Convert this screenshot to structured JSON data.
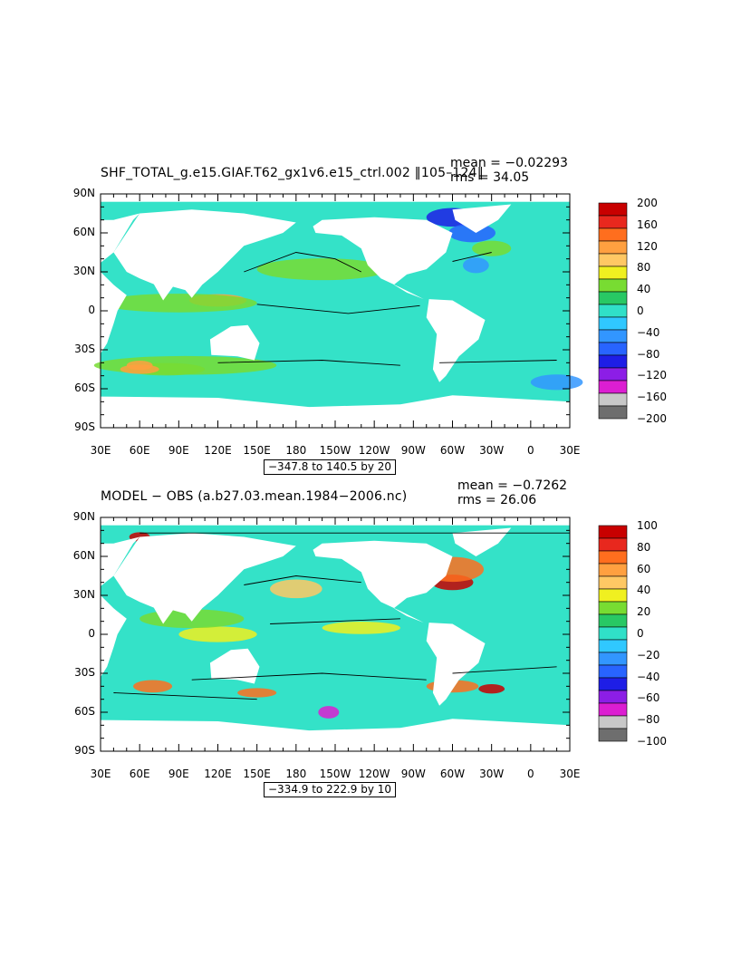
{
  "panels": [
    {
      "title": "SHF_TOTAL_g.e15.GIAF.T62_gx1v6.e15_ctrl.002 ‖105–124‖",
      "mean": "mean = −0.02293",
      "rms": "rms = 34.05",
      "range": "−347.8 to 140.5 by 20",
      "colorbar_labels": [
        "200",
        "160",
        "120",
        "80",
        "40",
        "0",
        "−40",
        "−80",
        "−120",
        "−160",
        "−200"
      ]
    },
    {
      "title": "MODEL − OBS (a.b27.03.mean.1984−2006.nc)",
      "mean": "mean = −0.7262",
      "rms": "rms = 26.06",
      "range": "−334.9 to 222.9 by 10",
      "colorbar_labels": [
        "100",
        "80",
        "60",
        "40",
        "20",
        "0",
        "−20",
        "−40",
        "−60",
        "−80",
        "−100"
      ]
    }
  ],
  "axes": {
    "lat_labels": [
      "90N",
      "60N",
      "30N",
      "0",
      "30S",
      "60S",
      "90S"
    ],
    "lon_labels": [
      "30E",
      "60E",
      "90E",
      "120E",
      "150E",
      "180",
      "150W",
      "120W",
      "90W",
      "60W",
      "30W",
      "0",
      "30E"
    ]
  },
  "colors": {
    "colorbar": [
      "#c80000",
      "#e8281e",
      "#ff6e1e",
      "#ffa040",
      "#ffc864",
      "#f0f020",
      "#78dc32",
      "#28c864",
      "#30e0c8",
      "#30c8ff",
      "#3296ff",
      "#2864ff",
      "#1e1ee6",
      "#8c1ee6",
      "#dc1ed2",
      "#c8c8c8",
      "#6e6e6e"
    ],
    "ocean_base": "#34e2c8",
    "land": "#ffffff"
  }
}
